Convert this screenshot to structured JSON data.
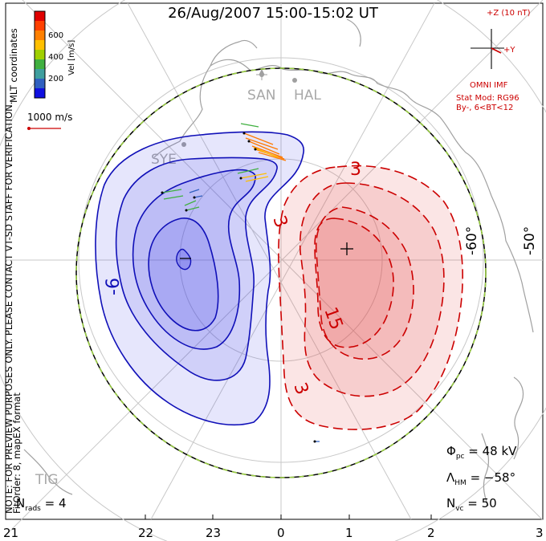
{
  "title": "26/Aug/2007  15:00-15:02  UT",
  "side_notes": {
    "line1": "NOTE: FOR PREVIEW PURPOSES ONLY. PLEASE CONTACT VT-SD STAFF FOR VERIFICATION.",
    "line2": "FitOrder: 8, mapEX format"
  },
  "coords_label": "MLT coordinates",
  "colorbar": {
    "label": "Vel [m/s]",
    "ticks": [
      "600",
      "400",
      "200"
    ],
    "colors": [
      "#e00000",
      "#ff4000",
      "#ff8000",
      "#ffc000",
      "#a0d000",
      "#40b040",
      "#3f9f9f",
      "#3060c0",
      "#1010e0"
    ]
  },
  "scale_vector": "1000 m/s",
  "imf": {
    "axis_z": "+Z (10 nT)",
    "axis_y": "+Y",
    "source": "OMNI IMF",
    "model": "Stat Mod: RG96",
    "condition": "By-, 6<BT<12"
  },
  "stations": [
    "SAN",
    "HAL",
    "SYE",
    "TIG"
  ],
  "latitude_labels": [
    "-60°",
    "-50°"
  ],
  "contour_labels": [
    "-6",
    "3",
    "3",
    "15",
    "3"
  ],
  "mlt_ticks": [
    "21",
    "22",
    "23",
    "0",
    "1",
    "2",
    "3"
  ],
  "stats": {
    "phi_sym": "Φ",
    "phi_sub": "pc",
    "phi_val": " = 48 kV",
    "lambda_sym": "Λ",
    "lambda_sub": "HM",
    "lambda_val": " = −58°",
    "nvc_sym": "N",
    "nvc_sub": "vc",
    "nvc_val": " = 50",
    "nrads_sym": "N",
    "nrads_sub": "rads",
    "nrads_val": " = 4"
  },
  "colors": {
    "negative_fill": "#3a3ae6",
    "positive_fill": "#e64a4a",
    "negative_line": "#1010b8",
    "positive_line": "#cc0000",
    "land": "#9a9a9a",
    "boundary_dash": "#9ad040"
  }
}
